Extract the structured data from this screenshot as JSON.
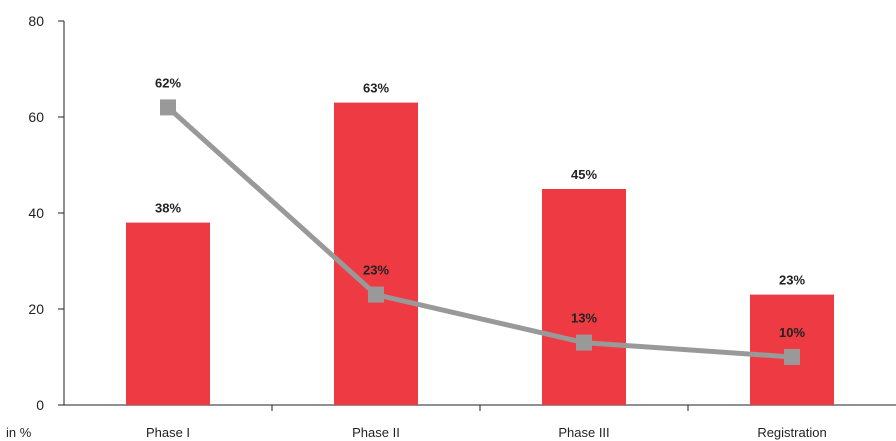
{
  "chart_data": {
    "type": "bar",
    "categories": [
      "Phase I",
      "Phase II",
      "Phase III",
      "Registration"
    ],
    "series": [
      {
        "type": "bar",
        "values": [
          38,
          63,
          45,
          23
        ],
        "labels": [
          "38%",
          "63%",
          "45%",
          "23%"
        ],
        "color": "#ee3a43"
      },
      {
        "type": "line",
        "values": [
          62,
          23,
          13,
          10
        ],
        "labels": [
          "62%",
          "23%",
          "13%",
          "10%"
        ],
        "color": "#999999"
      }
    ],
    "ylim": [
      0,
      80
    ],
    "yticks": [
      "0",
      "20",
      "40",
      "60",
      "80"
    ],
    "ylabel": "in %",
    "xlabel": "",
    "title": "",
    "grid": false,
    "legend": false
  }
}
